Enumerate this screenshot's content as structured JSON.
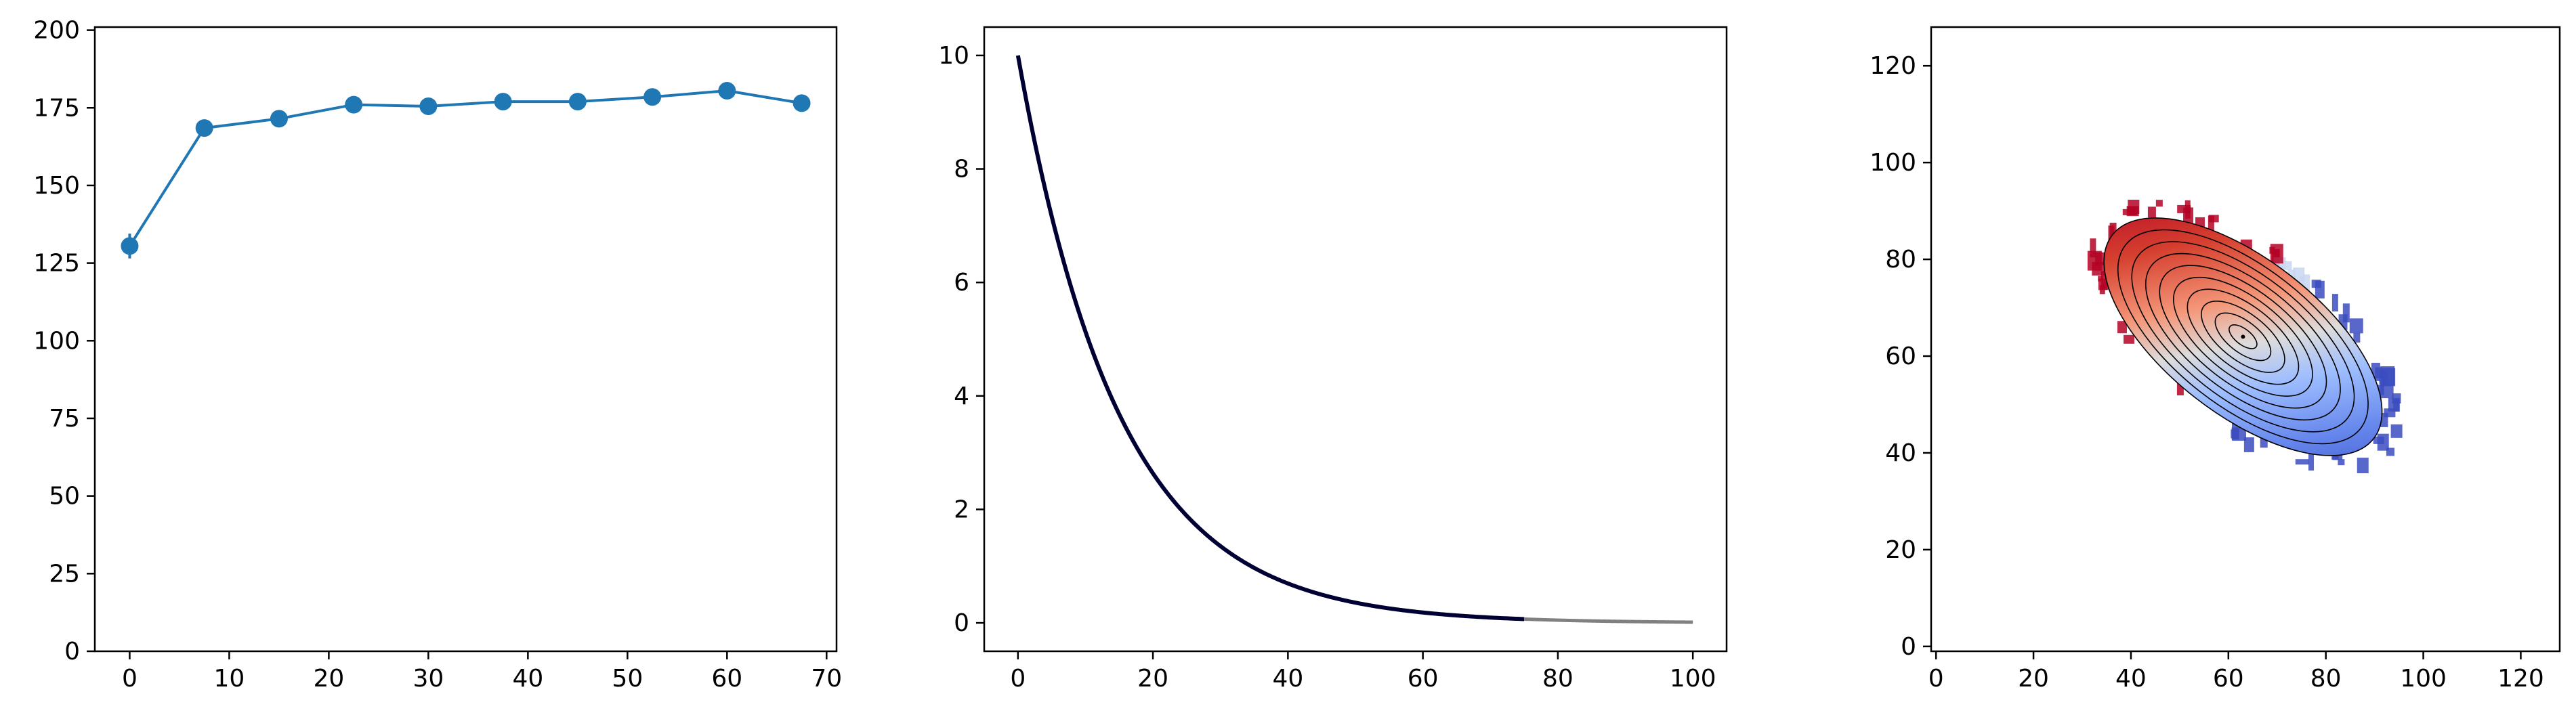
{
  "chart_data": [
    {
      "type": "line",
      "series": [
        {
          "x": [
            0,
            7.5,
            15,
            22.5,
            30,
            37.5,
            45,
            52.5,
            60,
            67.5
          ],
          "values": [
            130.5,
            168.5,
            171.5,
            176,
            175.5,
            177,
            177,
            178.5,
            180.5,
            176.5
          ],
          "error": [
            4,
            1,
            1,
            1,
            1,
            1,
            1,
            1,
            1,
            1
          ],
          "marker": "circle",
          "color": "#1f77b4"
        }
      ],
      "xlim": [
        -3.5,
        71
      ],
      "ylim": [
        0,
        201
      ],
      "xticks": [
        0,
        10,
        20,
        30,
        40,
        50,
        60,
        70
      ],
      "yticks": [
        0,
        25,
        50,
        75,
        100,
        125,
        150,
        175,
        200
      ]
    },
    {
      "type": "line",
      "series": [
        {
          "function": "10*exp(-x/15)",
          "x_range": [
            0,
            75
          ],
          "color": "#000033"
        },
        {
          "function": "10*exp(-x/15)",
          "x_range": [
            75,
            100
          ],
          "color": "#808080"
        }
      ],
      "xlim": [
        -5,
        105
      ],
      "ylim": [
        -0.5,
        10.5
      ],
      "xticks": [
        0,
        20,
        40,
        60,
        80,
        100
      ],
      "yticks": [
        0,
        2,
        4,
        6,
        8,
        10
      ]
    },
    {
      "type": "heatmap",
      "colormap": "coolwarm",
      "center": [
        63,
        64
      ],
      "ellipse_major_semi_axis": 34,
      "ellipse_minor_semi_axis": 16,
      "ellipse_angle_deg": -38,
      "contour_count": 10,
      "xlim": [
        -1,
        128
      ],
      "ylim": [
        -1,
        128
      ],
      "xticks": [
        0,
        20,
        40,
        60,
        80,
        100,
        120
      ],
      "yticks": [
        0,
        20,
        40,
        60,
        80,
        100,
        120
      ]
    }
  ]
}
